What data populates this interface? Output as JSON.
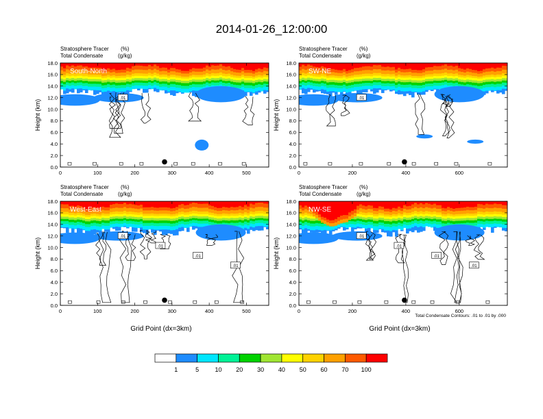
{
  "title": "2014-01-26_12:00:00",
  "panel_common": {
    "label_left_1": "Stratosphere Tracer",
    "label_left_2": "Total Condensate",
    "label_right_1": "(%)",
    "label_right_2": "(g/kg)",
    "ylabel": "Height (km)",
    "xlabel": "Grid Point (dx=3km)"
  },
  "contour_note": "Total Condensate Contours: .01 to .01 by .000",
  "colors": {
    "levels": [
      "#ffffff",
      "#1e8cff",
      "#00e6ff",
      "#00f296",
      "#00d200",
      "#a0e632",
      "#ffff00",
      "#ffd200",
      "#ffa000",
      "#ff5a00",
      "#ff0000"
    ],
    "cloud_fill": "#1e8cff"
  },
  "colorbar": {
    "labels": [
      "1",
      "5",
      "10",
      "20",
      "30",
      "40",
      "50",
      "60",
      "70",
      "100"
    ]
  },
  "chart_data": [
    {
      "type": "heatmap",
      "panel": "South-North",
      "xlim": [
        0,
        560
      ],
      "xticks": [
        0,
        100,
        200,
        300,
        400,
        500
      ],
      "ylim": [
        0,
        18
      ],
      "yticks": [
        "0.0",
        "2.0",
        "4.0",
        "6.0",
        "8.0",
        "10.0",
        "12.0",
        "14.0",
        "16.0",
        "18.0"
      ],
      "center_point_x": 280,
      "contour_labels": [
        ".01"
      ],
      "tracer_band_km": [
        [
          12.5,
          14.5
        ],
        [
          14.5,
          16.0
        ],
        [
          16.0,
          18.0
        ]
      ]
    },
    {
      "type": "heatmap",
      "panel": "SW-NE",
      "xlim": [
        0,
        780
      ],
      "xticks": [
        0,
        200,
        400,
        600
      ],
      "ylim": [
        0,
        18
      ],
      "yticks": [
        "0.0",
        "2.0",
        "4.0",
        "6.0",
        "8.0",
        "10.0",
        "12.0",
        "14.0",
        "16.0",
        "18.0"
      ],
      "center_point_x": 395,
      "contour_labels": [
        ".01"
      ],
      "tracer_band_km": [
        [
          12.5,
          14.5
        ],
        [
          14.5,
          16.0
        ],
        [
          16.0,
          18.0
        ]
      ]
    },
    {
      "type": "heatmap",
      "panel": "West-East",
      "xlim": [
        0,
        560
      ],
      "xticks": [
        0,
        100,
        200,
        300,
        400,
        500
      ],
      "ylim": [
        0,
        18
      ],
      "yticks": [
        "0.0",
        "2.0",
        "4.0",
        "6.0",
        "8.0",
        "10.0",
        "12.0",
        "14.0",
        "16.0",
        "18.0"
      ],
      "center_point_x": 280,
      "contour_labels": [
        ".01",
        ".01",
        ".01",
        ".01"
      ],
      "tracer_band_km": [
        [
          12.5,
          14.5
        ],
        [
          14.5,
          16.0
        ],
        [
          16.0,
          18.0
        ]
      ]
    },
    {
      "type": "heatmap",
      "panel": "NW-SE",
      "xlim": [
        0,
        780
      ],
      "xticks": [
        0,
        200,
        400,
        600
      ],
      "ylim": [
        0,
        18
      ],
      "yticks": [
        "0.0",
        "2.0",
        "4.0",
        "6.0",
        "8.0",
        "10.0",
        "12.0",
        "14.0",
        "16.0",
        "18.0"
      ],
      "center_point_x": 395,
      "contour_labels": [
        ".01",
        ".01",
        ".01",
        ".01"
      ],
      "tracer_band_km": [
        [
          12.5,
          14.5
        ],
        [
          14.5,
          16.0
        ],
        [
          16.0,
          18.0
        ]
      ]
    }
  ]
}
